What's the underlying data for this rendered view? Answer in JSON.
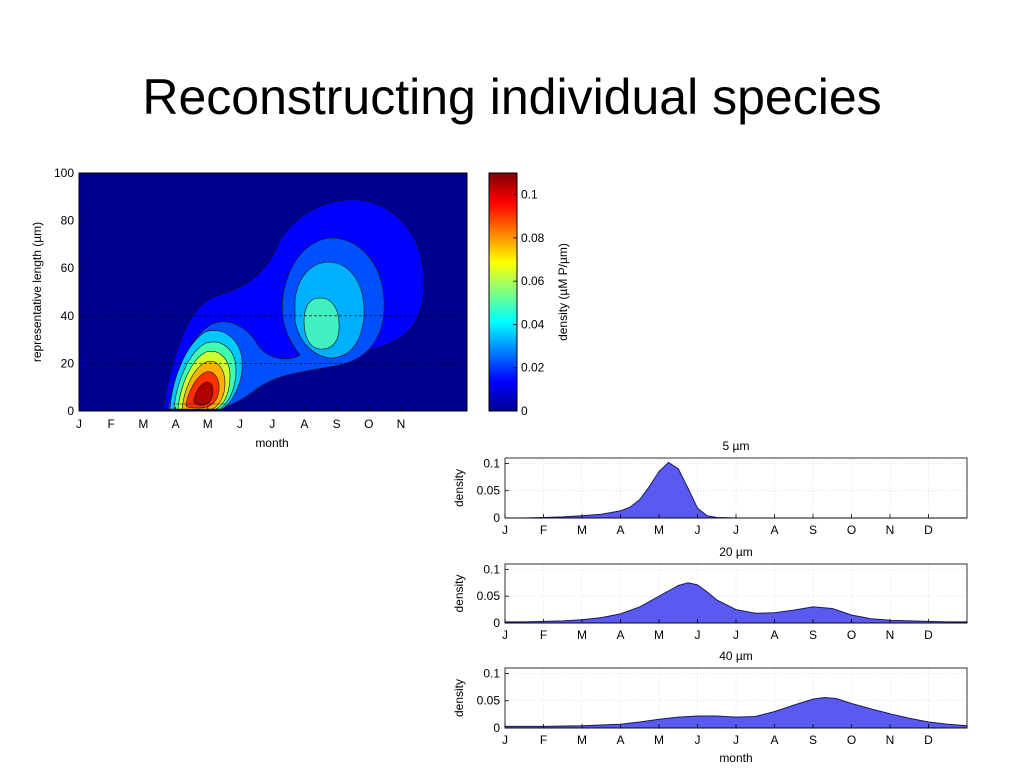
{
  "slide": {
    "title": "Reconstructing individual species"
  },
  "chart_data": [
    {
      "type": "heatmap",
      "subtype": "filled-contour",
      "xlabel": "month",
      "ylabel": "representative length (µm)",
      "x_tick_labels": [
        "J",
        "F",
        "M",
        "A",
        "M",
        "J",
        "J",
        "A",
        "S",
        "O",
        "N"
      ],
      "ylim": [
        0,
        100
      ],
      "y_ticks": [
        0,
        20,
        40,
        60,
        80,
        100
      ],
      "colorbar": {
        "label": "density (µM P/µm)",
        "range": [
          0,
          0.11
        ],
        "ticks": [
          0,
          0.02,
          0.04,
          0.06,
          0.08,
          0.1
        ],
        "colormap": "jet"
      },
      "dashed_reference_lines_y": [
        20,
        40
      ],
      "peaks": [
        {
          "month": 4.7,
          "length": 8,
          "density": 0.11
        },
        {
          "month": 8.3,
          "length": 36,
          "density": 0.05
        }
      ]
    },
    {
      "type": "area",
      "title": "5 µm",
      "ylabel": "density",
      "ylim": [
        0,
        0.11
      ],
      "y_ticks": [
        0,
        0.05,
        0.1
      ],
      "x_tick_labels": [
        "J",
        "F",
        "M",
        "A",
        "M",
        "J",
        "J",
        "A",
        "S",
        "O",
        "N",
        "D"
      ],
      "x": [
        0,
        0.5,
        1,
        1.5,
        2,
        2.5,
        3,
        3.25,
        3.5,
        3.75,
        4,
        4.25,
        4.5,
        4.75,
        5,
        5.25,
        5.5,
        6,
        7,
        8,
        9,
        10,
        11,
        12
      ],
      "values": [
        0,
        0,
        0.001,
        0.002,
        0.004,
        0.007,
        0.013,
        0.02,
        0.034,
        0.058,
        0.085,
        0.102,
        0.09,
        0.055,
        0.018,
        0.004,
        0.001,
        0,
        0,
        0,
        0,
        0,
        0,
        0
      ],
      "color": "#5a5af0"
    },
    {
      "type": "area",
      "title": "20 µm",
      "ylabel": "density",
      "ylim": [
        0,
        0.11
      ],
      "y_ticks": [
        0,
        0.05,
        0.1
      ],
      "x_tick_labels": [
        "J",
        "F",
        "M",
        "A",
        "M",
        "J",
        "J",
        "A",
        "S",
        "O",
        "N",
        "D"
      ],
      "x": [
        0,
        0.5,
        1,
        1.5,
        2,
        2.5,
        3,
        3.5,
        4,
        4.5,
        4.75,
        5,
        5.25,
        5.5,
        6,
        6.5,
        7,
        7.5,
        8,
        8.5,
        9,
        9.5,
        10,
        10.5,
        11,
        11.5,
        12
      ],
      "values": [
        0.002,
        0.002,
        0.003,
        0.004,
        0.006,
        0.01,
        0.017,
        0.03,
        0.05,
        0.07,
        0.075,
        0.071,
        0.058,
        0.043,
        0.025,
        0.018,
        0.019,
        0.024,
        0.03,
        0.027,
        0.015,
        0.008,
        0.005,
        0.004,
        0.003,
        0.002,
        0.002
      ],
      "color": "#5a5af0"
    },
    {
      "type": "area",
      "title": "40 µm",
      "xlabel": "month",
      "ylabel": "density",
      "ylim": [
        0,
        0.11
      ],
      "y_ticks": [
        0,
        0.05,
        0.1
      ],
      "x_tick_labels": [
        "J",
        "F",
        "M",
        "A",
        "M",
        "J",
        "J",
        "A",
        "S",
        "O",
        "N",
        "D"
      ],
      "x": [
        0,
        1,
        2,
        3,
        3.5,
        4,
        4.5,
        5,
        5.5,
        6,
        6.5,
        7,
        7.5,
        8,
        8.3,
        8.6,
        9,
        9.5,
        10,
        10.5,
        11,
        11.5,
        12
      ],
      "values": [
        0.003,
        0.003,
        0.004,
        0.007,
        0.011,
        0.016,
        0.02,
        0.022,
        0.022,
        0.02,
        0.021,
        0.03,
        0.042,
        0.053,
        0.056,
        0.054,
        0.045,
        0.035,
        0.026,
        0.018,
        0.011,
        0.007,
        0.004
      ],
      "color": "#5a5af0"
    }
  ]
}
